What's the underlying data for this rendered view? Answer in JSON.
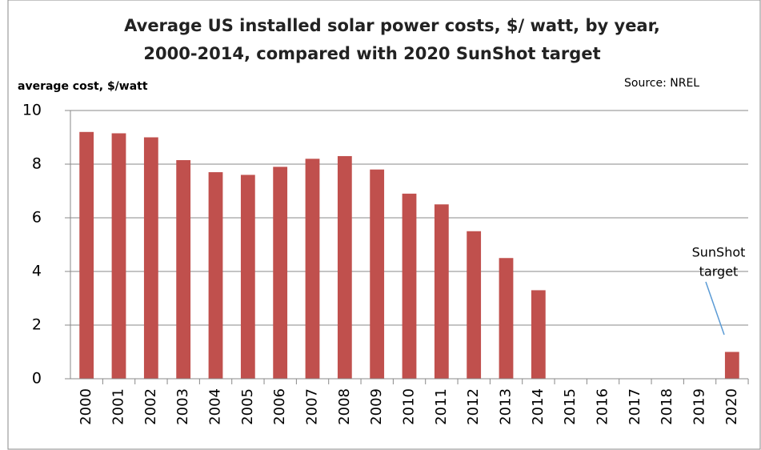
{
  "chart_data": {
    "type": "bar",
    "title": [
      "Average US installed solar power costs, $/ watt, by year,",
      "2000-2014, compared with 2020 SunShot target"
    ],
    "ylabel": "average cost, $/watt",
    "source": "Source: NREL",
    "categories": [
      "2000",
      "2001",
      "2002",
      "2003",
      "2004",
      "2005",
      "2006",
      "2007",
      "2008",
      "2009",
      "2010",
      "2011",
      "2012",
      "2013",
      "2014",
      "2015",
      "2016",
      "2017",
      "2018",
      "2019",
      "2020"
    ],
    "values": [
      9.2,
      9.15,
      9.0,
      8.15,
      7.7,
      7.6,
      7.9,
      8.2,
      8.3,
      7.8,
      6.9,
      6.5,
      5.5,
      4.5,
      3.3,
      null,
      null,
      null,
      null,
      null,
      1.0
    ],
    "color": "#c0504d",
    "ylim": [
      0,
      10
    ],
    "yticks": [
      0,
      2,
      4,
      6,
      8,
      10
    ],
    "grid": true,
    "annotation": [
      "SunShot",
      "target"
    ]
  }
}
